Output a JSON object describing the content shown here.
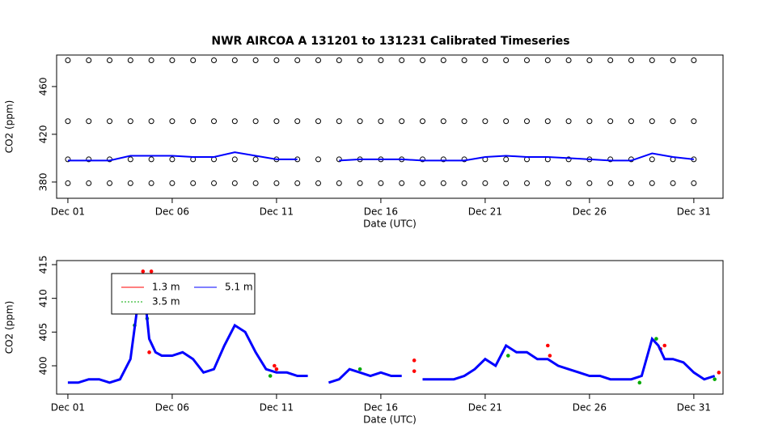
{
  "chart_data": [
    {
      "type": "scatter",
      "title": "NWR   AIRCOA  A   131201  to  131231   Calibrated Timeseries",
      "xlabel": "Date (UTC)",
      "ylabel": "CO2 (ppm)",
      "xlim": [
        0.46,
        32.4
      ],
      "ylim": [
        366.4,
        486.4
      ],
      "xticks": [
        {
          "value": 1,
          "label": "Dec 01"
        },
        {
          "value": 6,
          "label": "Dec 06"
        },
        {
          "value": 11,
          "label": "Dec 11"
        },
        {
          "value": 16,
          "label": "Dec 16"
        },
        {
          "value": 21,
          "label": "Dec 21"
        },
        {
          "value": 26,
          "label": "Dec 26"
        },
        {
          "value": 31,
          "label": "Dec 31"
        }
      ],
      "yticks": [
        380,
        420,
        460
      ],
      "x": [
        1,
        2,
        3,
        4,
        5,
        6,
        7,
        8,
        9,
        10,
        11,
        12,
        13,
        14,
        15,
        16,
        17,
        18,
        19,
        20,
        21,
        22,
        23,
        24,
        25,
        26,
        27,
        28,
        29,
        30,
        31
      ],
      "series": [
        {
          "color": "#000000",
          "marker": "circle",
          "values": [
            482,
            482,
            482,
            482,
            482,
            482,
            482,
            482,
            482,
            482,
            482,
            482,
            482,
            482,
            482,
            482,
            482,
            482,
            482,
            482,
            482,
            482,
            482,
            482,
            482,
            482,
            482,
            482,
            482,
            482,
            482
          ]
        },
        {
          "color": "#000000",
          "marker": "circle",
          "values": [
            431,
            431,
            431,
            431,
            431,
            431,
            431,
            431,
            431,
            431,
            431,
            431,
            431,
            431,
            431,
            431,
            431,
            431,
            431,
            431,
            431,
            431,
            431,
            431,
            431,
            431,
            431,
            431,
            431,
            431,
            431
          ]
        },
        {
          "color": "#000000",
          "marker": "circle",
          "values": [
            399,
            399,
            399,
            399,
            399,
            399,
            399,
            399,
            399,
            399,
            399,
            399,
            399,
            399,
            399,
            399,
            399,
            399,
            399,
            399,
            399,
            399,
            399,
            399,
            399,
            399,
            399,
            399,
            399,
            399,
            399
          ]
        },
        {
          "color": "#000000",
          "marker": "circle",
          "values": [
            379,
            379,
            379,
            379,
            379,
            379,
            379,
            379,
            379,
            379,
            379,
            379,
            379,
            379,
            379,
            379,
            379,
            379,
            379,
            379,
            379,
            379,
            379,
            379,
            379,
            379,
            379,
            379,
            379,
            379,
            379
          ]
        },
        {
          "color": "#0000ff",
          "marker": "line",
          "values": [
            398,
            398,
            398,
            402,
            402,
            402,
            401,
            401,
            405,
            402,
            399,
            399,
            null,
            398,
            399,
            399,
            399,
            398,
            398,
            398,
            401,
            402,
            401,
            401,
            400,
            399,
            398,
            398,
            404,
            401,
            399
          ]
        }
      ]
    },
    {
      "type": "scatter",
      "xlabel": "Date (UTC)",
      "ylabel": "CO2 (ppm)",
      "xlim": [
        0.46,
        32.4
      ],
      "ylim": [
        395.8,
        415.6
      ],
      "xticks": [
        {
          "value": 1,
          "label": "Dec 01"
        },
        {
          "value": 6,
          "label": "Dec 06"
        },
        {
          "value": 11,
          "label": "Dec 11"
        },
        {
          "value": 16,
          "label": "Dec 16"
        },
        {
          "value": 21,
          "label": "Dec 21"
        },
        {
          "value": 26,
          "label": "Dec 26"
        },
        {
          "value": 31,
          "label": "Dec 31"
        }
      ],
      "yticks": [
        400,
        405,
        410,
        415
      ],
      "legend": "top-left",
      "series": [
        {
          "name": "1.3 m",
          "color": "#ff0000",
          "marker": "dot",
          "x": [
            4.6,
            4.7,
            4.9,
            5.0,
            10.9,
            11.0,
            17.6,
            17.6,
            24.0,
            24.1,
            29.4,
            29.6,
            32.2
          ],
          "values": [
            414,
            409,
            402,
            414,
            400,
            399.5,
            400.8,
            399.2,
            403,
            401.5,
            402.5,
            403,
            399
          ]
        },
        {
          "name": "3.5 m",
          "color": "#00aa00",
          "marker": "dot",
          "x": [
            4.2,
            4.5,
            4.8,
            10.7,
            15.0,
            22.1,
            28.4,
            29.2,
            32.0
          ],
          "values": [
            406,
            412,
            407,
            398.5,
            399.5,
            401.5,
            397.5,
            404,
            398
          ]
        },
        {
          "name": "5.1 m",
          "color": "#0000ff",
          "marker": "line",
          "x": [
            1,
            1.5,
            2,
            2.5,
            3,
            3.5,
            4,
            4.3,
            4.6,
            4.9,
            5.2,
            5.5,
            6,
            6.5,
            7,
            7.5,
            8,
            8.5,
            9,
            9.5,
            10,
            10.5,
            11,
            11.5,
            12,
            12.5,
            13,
            13.5,
            14,
            14.5,
            15,
            15.5,
            16,
            16.5,
            17,
            17.5,
            18,
            18.5,
            19,
            19.5,
            20,
            20.5,
            21,
            21.5,
            22,
            22.5,
            23,
            23.5,
            24,
            24.5,
            25,
            25.5,
            26,
            26.5,
            27,
            27.5,
            28,
            28.5,
            29,
            29.3,
            29.6,
            30,
            30.5,
            31,
            31.5,
            32
          ],
          "values": [
            397.5,
            397.5,
            398,
            398,
            397.5,
            398,
            401,
            408,
            413,
            404,
            402,
            401.5,
            401.5,
            402,
            401,
            399,
            399.5,
            403,
            406,
            405,
            402,
            399.5,
            399,
            399,
            398.5,
            398.5,
            null,
            397.5,
            398,
            399.5,
            399,
            398.5,
            399,
            398.5,
            398.5,
            null,
            398,
            398,
            398,
            398,
            398.5,
            399.5,
            401,
            400,
            403,
            402,
            402,
            401,
            401,
            400,
            399.5,
            399,
            398.5,
            398.5,
            398,
            398,
            398,
            398.5,
            404,
            403,
            401,
            401,
            400.5,
            399,
            398,
            398.5
          ]
        }
      ]
    }
  ]
}
